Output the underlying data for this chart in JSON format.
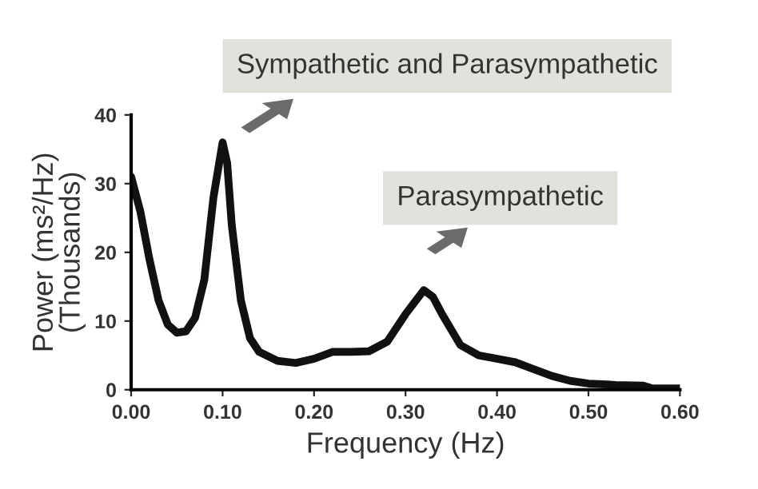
{
  "chart_data": {
    "type": "line",
    "xlabel": "Frequency (Hz)",
    "ylabel": "Power (ms²/Hz)\n(Thousands)",
    "annotations": [
      "Sympathetic and Parasympathetic",
      "Parasympathetic"
    ],
    "x": [
      0.0,
      0.01,
      0.02,
      0.03,
      0.04,
      0.05,
      0.06,
      0.07,
      0.08,
      0.09,
      0.1,
      0.105,
      0.11,
      0.12,
      0.13,
      0.14,
      0.16,
      0.18,
      0.2,
      0.22,
      0.24,
      0.26,
      0.28,
      0.3,
      0.32,
      0.33,
      0.34,
      0.36,
      0.38,
      0.4,
      0.42,
      0.44,
      0.46,
      0.48,
      0.5,
      0.53,
      0.56,
      0.57,
      0.6
    ],
    "series": [
      {
        "color": "#111111",
        "values": [
          31,
          26,
          19,
          13,
          9.5,
          8.3,
          8.5,
          10.5,
          16,
          28,
          36,
          33,
          24,
          13,
          7.5,
          5.5,
          4.2,
          3.9,
          4.5,
          5.5,
          5.5,
          5.6,
          7,
          11,
          14.5,
          13.5,
          11,
          6.5,
          5,
          4.5,
          4,
          3,
          2,
          1.3,
          0.9,
          0.7,
          0.6,
          0.2,
          0.2
        ]
      }
    ],
    "xlim": [
      0,
      0.6
    ],
    "ylim": [
      0,
      40
    ],
    "xticks": [
      {
        "value": 0,
        "label": "0.00"
      },
      {
        "value": 0.1,
        "label": "0.10"
      },
      {
        "value": 0.2,
        "label": "0.20"
      },
      {
        "value": 0.3,
        "label": "0.30"
      },
      {
        "value": 0.4,
        "label": "0.40"
      },
      {
        "value": 0.5,
        "label": "0.50"
      },
      {
        "value": 0.6,
        "label": "0.60"
      }
    ],
    "yticks": [
      0,
      10,
      20,
      30,
      40
    ],
    "grid": false,
    "marker": "none",
    "line_style": "solid"
  }
}
